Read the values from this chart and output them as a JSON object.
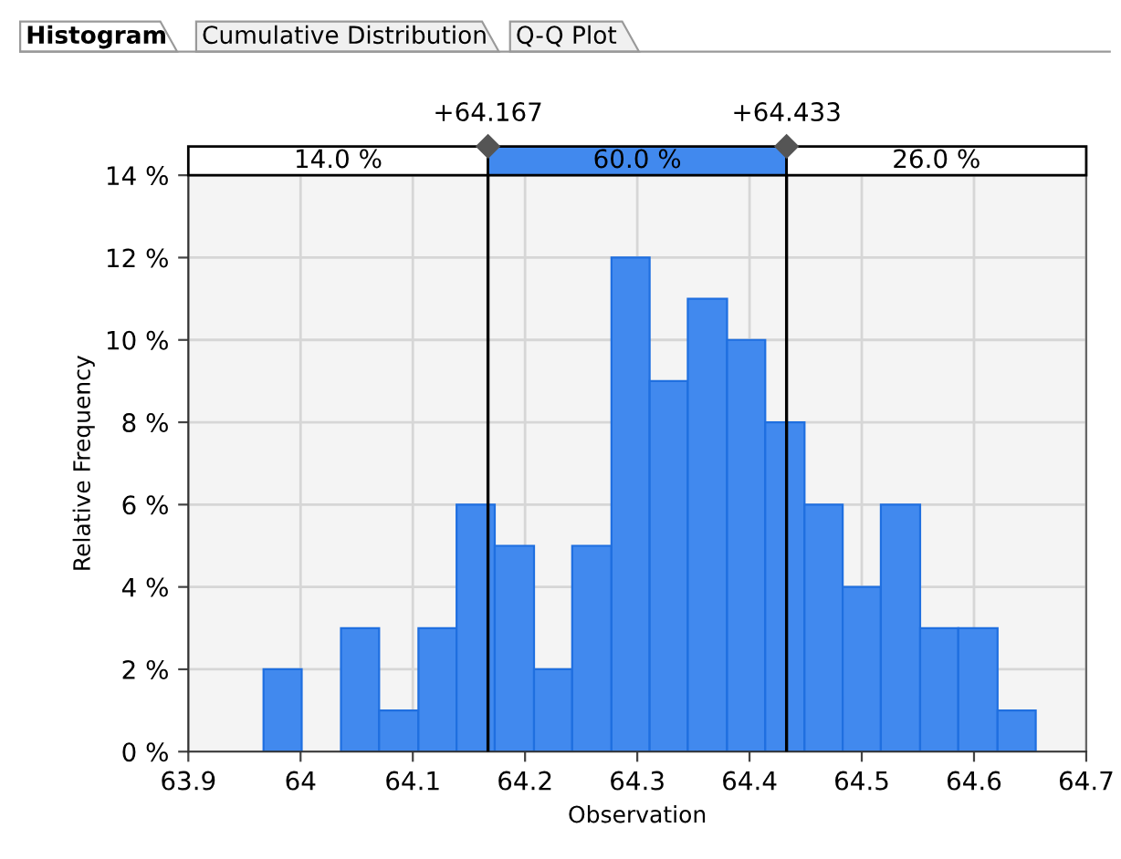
{
  "chart_data": {
    "type": "histogram",
    "xlabel": "Observation",
    "ylabel": "Relative Frequency",
    "bins": [
      63.967,
      64.001,
      64.036,
      64.07,
      64.105,
      64.139,
      64.173,
      64.208,
      64.242,
      64.277,
      64.311,
      64.345,
      64.38,
      64.414,
      64.449,
      64.483,
      64.517,
      64.552,
      64.586,
      64.621,
      64.655
    ],
    "values": [
      2,
      0,
      3,
      1,
      3,
      6,
      5,
      2,
      5,
      12,
      9,
      11,
      10,
      8,
      6,
      4,
      6,
      3,
      3,
      1
    ],
    "color": "#4189ee",
    "xlim": [
      63.9,
      64.7
    ],
    "xticks": [
      63.9,
      64,
      64.1,
      64.2,
      64.3,
      64.4,
      64.5,
      64.6,
      64.7
    ],
    "ylim": [
      0,
      14
    ],
    "yticks": [
      {
        "value": 0,
        "label": "0 %"
      },
      {
        "value": 2,
        "label": "2 %"
      },
      {
        "value": 4,
        "label": "4 %"
      },
      {
        "value": 6,
        "label": "6 %"
      },
      {
        "value": 8,
        "label": "8 %"
      },
      {
        "value": 10,
        "label": "10 %"
      },
      {
        "value": 12,
        "label": "12 %"
      },
      {
        "value": 14,
        "label": "14 %"
      }
    ],
    "grid": true,
    "ref_lines": [
      {
        "axis": "x",
        "value": 64.167,
        "label": "+64.167",
        "color": "#000000"
      },
      {
        "axis": "x",
        "value": 64.433,
        "label": "+64.433",
        "color": "#000000"
      }
    ],
    "annotations": [
      "Histogram",
      "Cumulative Distribution",
      "Q-Q Plot",
      "14.0 %",
      "60.0 %",
      "26.0 %"
    ]
  }
}
